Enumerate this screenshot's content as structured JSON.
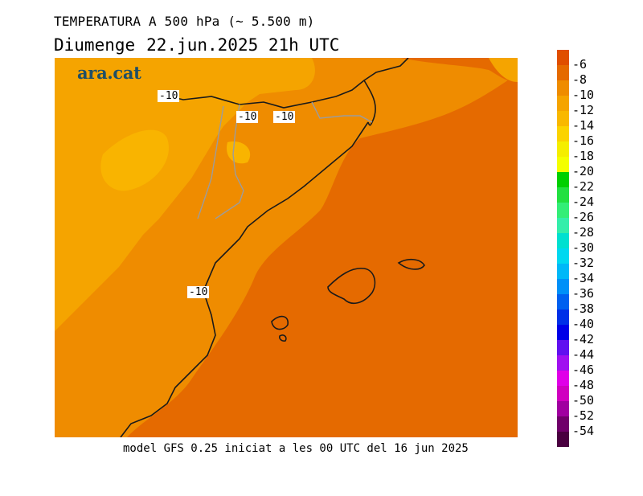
{
  "header": {
    "title": "TEMPERATURA A 500 hPa (~ 5.500 m)",
    "day": "Diumenge",
    "date": "22.jun.2025",
    "time": "21h UTC"
  },
  "brand": {
    "logo_text": "ara.cat"
  },
  "map": {
    "contour_labels": [
      "-10",
      "-10",
      "-10",
      "-10"
    ],
    "colors": {
      "band_minus_8": "#e56a00",
      "band_minus_10": "#ef8c00",
      "band_minus_12": "#f5a400",
      "band_minus_14": "#f9b400",
      "coastline": "#1a1a1a",
      "borders": "#9c9c9c"
    }
  },
  "footer": {
    "text": "model GFS 0.25 iniciat a les 00 UTC del 16 jun 2025"
  },
  "colorbar": {
    "labels": [
      "-6",
      "-8",
      "-10",
      "-12",
      "-14",
      "-16",
      "-18",
      "-20",
      "-22",
      "-24",
      "-26",
      "-28",
      "-30",
      "-32",
      "-34",
      "-36",
      "-38",
      "-40",
      "-42",
      "-44",
      "-46",
      "-48",
      "-50",
      "-52",
      "-54"
    ],
    "colors": [
      "#e04e00",
      "#e56a00",
      "#ef8c00",
      "#f5a400",
      "#f9b800",
      "#fbd300",
      "#f5ee00",
      "#f4ff00",
      "#00d000",
      "#22e040",
      "#33ee77",
      "#33eeaa",
      "#00e0d0",
      "#00d8f0",
      "#00b8f8",
      "#0090f8",
      "#0060f0",
      "#0030e8",
      "#0000e8",
      "#6010f0",
      "#a010f0",
      "#e000e8",
      "#d000c0",
      "#a000a0",
      "#70006a",
      "#4a0040"
    ]
  }
}
